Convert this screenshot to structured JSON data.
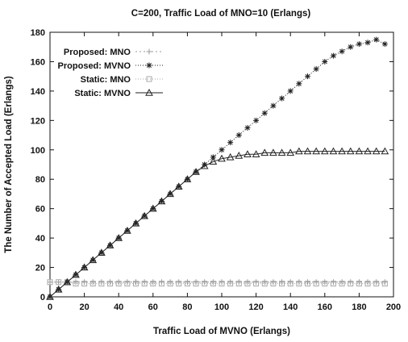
{
  "chart_data": {
    "type": "line",
    "title": "C=200, Traffic Load of MNO=10 (Erlangs)",
    "xlabel": "Traffic Load of MVNO (Erlangs)",
    "ylabel": "The Number of Accepted Load (Erlangs)",
    "xlim": [
      0,
      200
    ],
    "ylim": [
      0,
      180
    ],
    "xticks": [
      "0",
      "20",
      "40",
      "60",
      "80",
      "100",
      "120",
      "140",
      "160",
      "180",
      "200"
    ],
    "yticks": [
      "0",
      "20",
      "40",
      "60",
      "80",
      "100",
      "120",
      "140",
      "160",
      "180"
    ],
    "grid": false,
    "legend_position": "top-left",
    "x": [
      0,
      5,
      10,
      15,
      20,
      25,
      30,
      35,
      40,
      45,
      50,
      55,
      60,
      65,
      70,
      75,
      80,
      85,
      90,
      95,
      100,
      105,
      110,
      115,
      120,
      125,
      130,
      135,
      140,
      145,
      150,
      155,
      160,
      165,
      170,
      175,
      180,
      185,
      190,
      195
    ],
    "series": [
      {
        "name": "Proposed: MNO",
        "color": "#999999",
        "marker": "plus",
        "dash": "2,3",
        "values": [
          10,
          10,
          10,
          10,
          10,
          10,
          10,
          10,
          10,
          10,
          10,
          10,
          10,
          10,
          10,
          10,
          10,
          10,
          10,
          10,
          10,
          10,
          10,
          10,
          10,
          10,
          10,
          10,
          10,
          10,
          10,
          10,
          10,
          10,
          10,
          10,
          10,
          10,
          10,
          10
        ]
      },
      {
        "name": "Proposed: MVNO",
        "color": "#222222",
        "marker": "star",
        "dash": "1,2",
        "values": [
          0,
          5,
          10,
          15,
          20,
          25,
          30,
          35,
          40,
          45,
          50,
          55,
          60,
          65,
          70,
          75,
          80,
          85,
          90,
          95,
          100,
          105,
          110,
          115,
          120,
          125,
          130,
          135,
          140,
          145,
          150,
          155,
          160,
          164,
          167,
          170,
          172,
          173,
          175,
          172
        ]
      },
      {
        "name": "Static: MNO",
        "color": "#aaaaaa",
        "marker": "square",
        "dash": "1,2",
        "values": [
          10,
          10,
          10,
          9,
          9,
          9,
          9,
          9,
          9,
          9,
          9,
          9,
          9,
          9,
          9,
          9,
          9,
          9,
          9,
          9,
          9,
          9,
          9,
          9,
          9,
          9,
          9,
          9,
          9,
          9,
          9,
          9,
          9,
          9,
          9,
          9,
          9,
          9,
          9,
          9
        ]
      },
      {
        "name": "Static: MVNO",
        "color": "#222222",
        "marker": "triangle",
        "dash": "",
        "values": [
          0,
          5,
          10,
          15,
          20,
          25,
          30,
          35,
          40,
          45,
          50,
          55,
          60,
          65,
          70,
          75,
          80,
          85,
          89,
          92,
          94,
          95,
          96,
          97,
          97,
          98,
          98,
          98,
          98,
          99,
          99,
          99,
          99,
          99,
          99,
          99,
          99,
          99,
          99,
          99
        ]
      }
    ]
  }
}
